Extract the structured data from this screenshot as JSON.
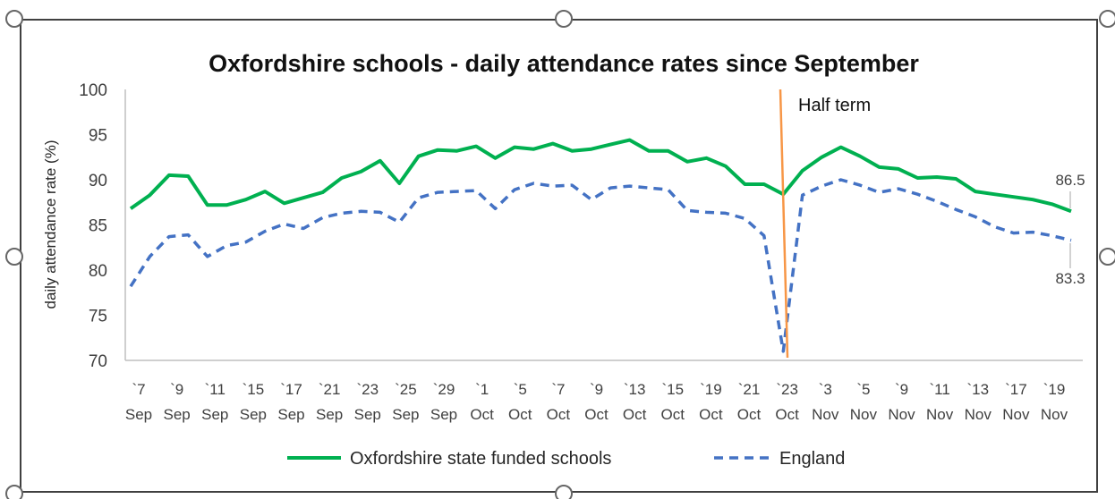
{
  "chart_data": {
    "type": "line",
    "title": "Oxfordshire schools - daily attendance rates since September",
    "ylabel": "daily attendance rate (%)",
    "xlabel": "",
    "ylim": [
      70,
      100
    ],
    "yticks": [
      70,
      75,
      80,
      85,
      90,
      95,
      100
    ],
    "grid": false,
    "legend_position": "bottom",
    "x_tick_labels": [
      {
        "top": "`7",
        "bottom": "Sep"
      },
      {
        "top": "`9",
        "bottom": "Sep"
      },
      {
        "top": "`11",
        "bottom": "Sep"
      },
      {
        "top": "`15",
        "bottom": "Sep"
      },
      {
        "top": "`17",
        "bottom": "Sep"
      },
      {
        "top": "`21",
        "bottom": "Sep"
      },
      {
        "top": "`23",
        "bottom": "Sep"
      },
      {
        "top": "`25",
        "bottom": "Sep"
      },
      {
        "top": "`29",
        "bottom": "Sep"
      },
      {
        "top": "`1",
        "bottom": "Oct"
      },
      {
        "top": "`5",
        "bottom": "Oct"
      },
      {
        "top": "`7",
        "bottom": "Oct"
      },
      {
        "top": "`9",
        "bottom": "Oct"
      },
      {
        "top": "`13",
        "bottom": "Oct"
      },
      {
        "top": "`15",
        "bottom": "Oct"
      },
      {
        "top": "`19",
        "bottom": "Oct"
      },
      {
        "top": "`21",
        "bottom": "Oct"
      },
      {
        "top": "`23",
        "bottom": "Oct"
      },
      {
        "top": "`3",
        "bottom": "Nov"
      },
      {
        "top": "`5",
        "bottom": "Nov"
      },
      {
        "top": "`9",
        "bottom": "Nov"
      },
      {
        "top": "`11",
        "bottom": "Nov"
      },
      {
        "top": "`13",
        "bottom": "Nov"
      },
      {
        "top": "`17",
        "bottom": "Nov"
      },
      {
        "top": "`19",
        "bottom": "Nov"
      }
    ],
    "series": [
      {
        "name": "Oxfordshire state funded schools",
        "color": "#00b050",
        "style": "solid",
        "values": [
          86.8,
          88.3,
          90.5,
          90.4,
          87.2,
          87.2,
          87.8,
          88.7,
          87.4,
          88.0,
          88.6,
          90.2,
          90.9,
          92.1,
          89.6,
          92.6,
          93.3,
          93.2,
          93.7,
          92.4,
          93.6,
          93.4,
          94.0,
          93.2,
          93.4,
          93.9,
          94.4,
          93.2,
          93.2,
          92.0,
          92.4,
          91.5,
          89.5,
          89.5,
          88.4,
          91.0,
          92.5,
          93.6,
          92.6,
          91.4,
          91.2,
          90.2,
          90.3,
          90.1,
          88.7,
          88.4,
          88.1,
          87.8,
          87.3,
          86.5
        ]
      },
      {
        "name": "England",
        "color": "#4472c4",
        "style": "dashed",
        "values": [
          78.2,
          81.5,
          83.7,
          83.9,
          81.5,
          82.7,
          83.1,
          84.3,
          85.1,
          84.6,
          85.8,
          86.3,
          86.5,
          86.4,
          85.3,
          88.0,
          88.6,
          88.7,
          88.8,
          86.8,
          88.9,
          89.6,
          89.3,
          89.4,
          87.8,
          89.1,
          89.3,
          89.1,
          88.9,
          86.6,
          86.4,
          86.3,
          85.7,
          83.8,
          71.0,
          88.3,
          89.3,
          90.0,
          89.4,
          88.6,
          89.0,
          88.4,
          87.6,
          86.7,
          85.9,
          84.8,
          84.1,
          84.2,
          83.8,
          83.3
        ]
      }
    ],
    "annotations": {
      "half_term_label": "Half term",
      "end_label_oxfordshire": "86.5",
      "end_label_england": "83.3"
    }
  }
}
